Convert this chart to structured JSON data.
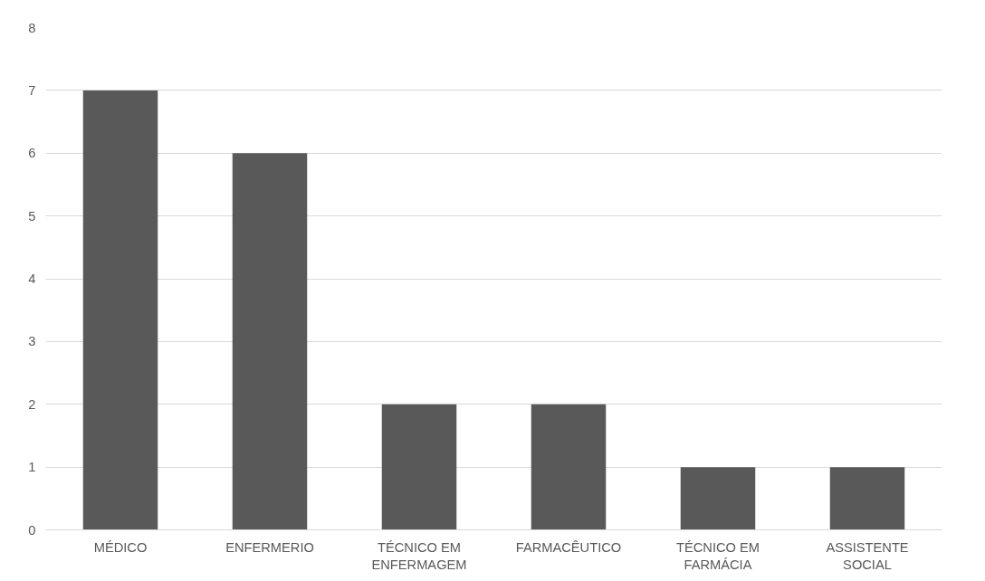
{
  "chart_data": {
    "type": "bar",
    "categories": [
      "MÉDICO",
      "ENFERMERIO",
      "TÉCNICO EM ENFERMAGEM",
      "FARMACÊUTICO",
      "TÉCNICO EM FARMÁCIA",
      "ASSISTENTE SOCIAL"
    ],
    "values": [
      7,
      6,
      2,
      2,
      1,
      1
    ],
    "color": "#595959",
    "ylim": [
      0,
      8
    ],
    "yticks": [
      0,
      1,
      2,
      3,
      4,
      5,
      6,
      7,
      8
    ],
    "grid": "y"
  }
}
